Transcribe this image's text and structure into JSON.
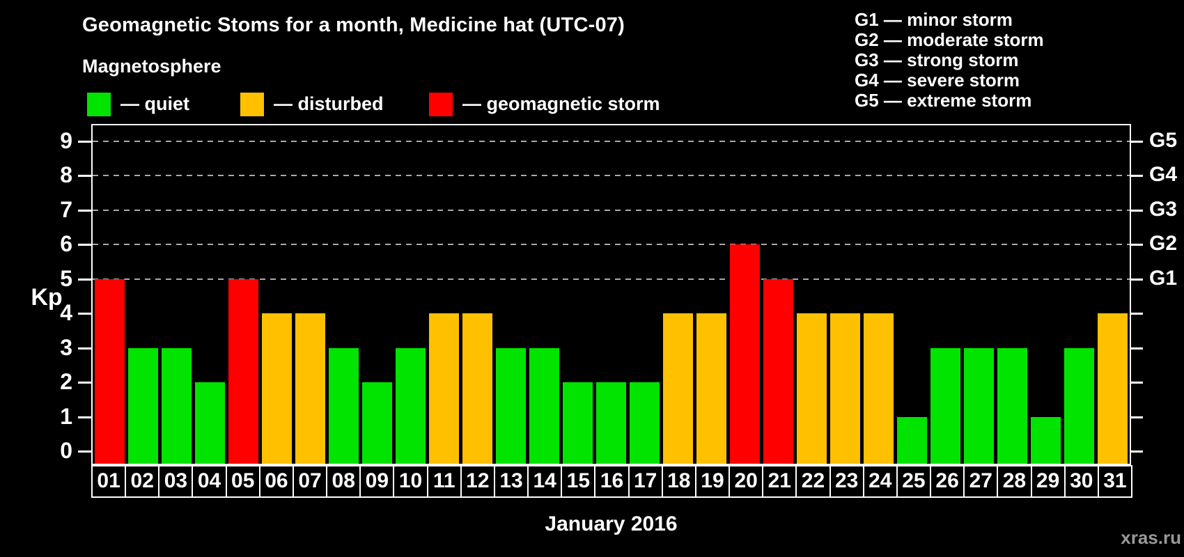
{
  "title": "Geomagnetic Stoms for a month, Medicine hat (UTC-07)",
  "subtitle": "Magnetosphere",
  "legend": {
    "items": [
      {
        "key": "quiet",
        "label": "— quiet",
        "color": "#00e400"
      },
      {
        "key": "disturbed",
        "label": "— disturbed",
        "color": "#ffc000"
      },
      {
        "key": "storm",
        "label": "— geomagnetic storm",
        "color": "#ff0000"
      }
    ]
  },
  "g_scale_legend": [
    "G1 — minor storm",
    "G2 — moderate storm",
    "G3 — strong storm",
    "G4 — severe storm",
    "G5 — extreme storm"
  ],
  "watermark": "xras.ru",
  "chart_data": {
    "type": "bar",
    "title": "Geomagnetic Stoms for a month, Medicine hat (UTC-07)",
    "xlabel": "January 2016",
    "ylabel": "Kp",
    "ylim": [
      0,
      9
    ],
    "grid": "dashed horizontal at Kp 5-9 only",
    "legend_position": "top-left",
    "categories": [
      "01",
      "02",
      "03",
      "04",
      "05",
      "06",
      "07",
      "08",
      "09",
      "10",
      "11",
      "12",
      "13",
      "14",
      "15",
      "16",
      "17",
      "18",
      "19",
      "20",
      "21",
      "22",
      "23",
      "24",
      "25",
      "26",
      "27",
      "28",
      "29",
      "30",
      "31"
    ],
    "values": [
      5,
      3,
      3,
      2,
      5,
      4,
      4,
      3,
      2,
      3,
      4,
      4,
      3,
      3,
      2,
      2,
      2,
      4,
      4,
      6,
      5,
      4,
      4,
      4,
      1,
      3,
      3,
      3,
      1,
      3,
      4
    ],
    "color_rule": {
      "storm_min": 5,
      "disturbed_min": 4,
      "quiet_max": 3
    },
    "left_ticks": [
      0,
      1,
      2,
      3,
      4,
      5,
      6,
      7,
      8,
      9
    ],
    "right_axis": [
      {
        "value": 5,
        "label": "G1"
      },
      {
        "value": 6,
        "label": "G2"
      },
      {
        "value": 7,
        "label": "G3"
      },
      {
        "value": 8,
        "label": "G4"
      },
      {
        "value": 9,
        "label": "G5"
      }
    ],
    "gridlines_at": [
      5,
      6,
      7,
      8,
      9
    ]
  }
}
